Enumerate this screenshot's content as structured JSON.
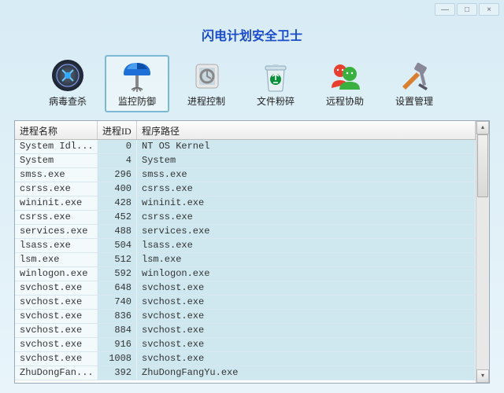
{
  "app": {
    "title": "闪电计划安全卫士"
  },
  "titlebar": {
    "min": "—",
    "max": "□",
    "close": "×"
  },
  "toolbar": [
    {
      "id": "virus-scan",
      "label": "病毒查杀",
      "active": false
    },
    {
      "id": "monitor-defense",
      "label": "监控防御",
      "active": true
    },
    {
      "id": "process-control",
      "label": "进程控制",
      "active": false
    },
    {
      "id": "file-shred",
      "label": "文件粉碎",
      "active": false
    },
    {
      "id": "remote-help",
      "label": "远程协助",
      "active": false
    },
    {
      "id": "settings",
      "label": "设置管理",
      "active": false
    }
  ],
  "table": {
    "columns": {
      "name": "进程名称",
      "id": "进程ID",
      "path": "程序路径"
    },
    "col_widths": {
      "name": 105,
      "id": 50
    },
    "header_bg": "#ececec",
    "row_bg": "#cfe8f0",
    "name_col_bg": "#f2fafc",
    "font": "Courier New",
    "rows": [
      {
        "name": "System Idl...",
        "id": 0,
        "path": "NT OS Kernel"
      },
      {
        "name": "System",
        "id": 4,
        "path": "System"
      },
      {
        "name": "smss.exe",
        "id": 296,
        "path": "smss.exe"
      },
      {
        "name": "csrss.exe",
        "id": 400,
        "path": "csrss.exe"
      },
      {
        "name": "wininit.exe",
        "id": 428,
        "path": "wininit.exe"
      },
      {
        "name": "csrss.exe",
        "id": 452,
        "path": "csrss.exe"
      },
      {
        "name": "services.exe",
        "id": 488,
        "path": "services.exe"
      },
      {
        "name": "lsass.exe",
        "id": 504,
        "path": "lsass.exe"
      },
      {
        "name": "lsm.exe",
        "id": 512,
        "path": "lsm.exe"
      },
      {
        "name": "winlogon.exe",
        "id": 592,
        "path": "winlogon.exe"
      },
      {
        "name": "svchost.exe",
        "id": 648,
        "path": "svchost.exe"
      },
      {
        "name": "svchost.exe",
        "id": 740,
        "path": "svchost.exe"
      },
      {
        "name": "svchost.exe",
        "id": 836,
        "path": "svchost.exe"
      },
      {
        "name": "svchost.exe",
        "id": 884,
        "path": "svchost.exe"
      },
      {
        "name": "svchost.exe",
        "id": 916,
        "path": "svchost.exe"
      },
      {
        "name": "svchost.exe",
        "id": 1008,
        "path": "svchost.exe"
      },
      {
        "name": "ZhuDongFan...",
        "id": 392,
        "path": "ZhuDongFangYu.exe"
      }
    ]
  },
  "colors": {
    "window_bg": "#e0f0f8",
    "title_color": "#1a4bcc",
    "active_border": "#7ab8d6"
  }
}
